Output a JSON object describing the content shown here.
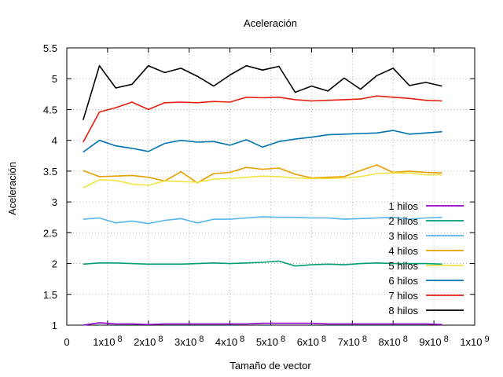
{
  "chart_data": {
    "type": "line",
    "title": "Aceleración",
    "xlabel": "Tamaño de vector",
    "ylabel": "Aceleración",
    "xlim": [
      0,
      1000000000
    ],
    "ylim": [
      1,
      5.5
    ],
    "grid": true,
    "legend_position": "right",
    "x_tick_labels": [
      {
        "value": 0,
        "label": "0"
      },
      {
        "value": 100000000,
        "label": "1x10",
        "exp": "8"
      },
      {
        "value": 200000000,
        "label": "2x10",
        "exp": "8"
      },
      {
        "value": 300000000,
        "label": "3x10",
        "exp": "8"
      },
      {
        "value": 400000000,
        "label": "4x10",
        "exp": "8"
      },
      {
        "value": 500000000,
        "label": "5x10",
        "exp": "8"
      },
      {
        "value": 600000000,
        "label": "6x10",
        "exp": "8"
      },
      {
        "value": 700000000,
        "label": "7x10",
        "exp": "8"
      },
      {
        "value": 800000000,
        "label": "8x10",
        "exp": "8"
      },
      {
        "value": 900000000,
        "label": "9x10",
        "exp": "8"
      },
      {
        "value": 1000000000,
        "label": "1x10",
        "exp": "9"
      }
    ],
    "y_ticks": [
      1,
      1.5,
      2,
      2.5,
      3,
      3.5,
      4,
      4.5,
      5,
      5.5
    ],
    "y_tick_labels": [
      "1",
      "1.5",
      "2",
      "2.5",
      "3",
      "3.5",
      "4",
      "4.5",
      "5",
      "5.5"
    ],
    "x": [
      40000000,
      80000000,
      120000000,
      160000000,
      200000000,
      240000000,
      280000000,
      320000000,
      360000000,
      400000000,
      440000000,
      480000000,
      520000000,
      560000000,
      600000000,
      640000000,
      680000000,
      720000000,
      760000000,
      800000000,
      840000000,
      880000000,
      920000000
    ],
    "series": [
      {
        "name": "1 hilos",
        "color": "#9400d3",
        "values": [
          1.0,
          1.04,
          1.02,
          1.02,
          1.01,
          1.02,
          1.02,
          1.02,
          1.02,
          1.02,
          1.02,
          1.03,
          1.03,
          1.03,
          1.03,
          1.02,
          1.02,
          1.02,
          1.02,
          1.02,
          1.02,
          1.02,
          1.01
        ]
      },
      {
        "name": "2 hilos",
        "color": "#009e73",
        "values": [
          1.99,
          2.01,
          2.01,
          2.0,
          1.99,
          1.99,
          1.99,
          2.0,
          2.01,
          2.0,
          2.01,
          2.02,
          2.04,
          1.96,
          1.98,
          1.99,
          1.98,
          2.0,
          2.01,
          2.0,
          2.0,
          2.0,
          1.99
        ]
      },
      {
        "name": "3 hilos",
        "color": "#56b4e9",
        "values": [
          2.72,
          2.74,
          2.66,
          2.69,
          2.65,
          2.7,
          2.73,
          2.66,
          2.72,
          2.72,
          2.74,
          2.76,
          2.75,
          2.75,
          2.74,
          2.74,
          2.72,
          2.73,
          2.74,
          2.75,
          2.72,
          2.74,
          2.75
        ]
      },
      {
        "name": "4 hilos",
        "color": "#e69f00",
        "values": [
          3.51,
          3.41,
          3.42,
          3.43,
          3.4,
          3.34,
          3.49,
          3.31,
          3.46,
          3.48,
          3.56,
          3.53,
          3.55,
          3.45,
          3.39,
          3.4,
          3.41,
          3.51,
          3.6,
          3.48,
          3.5,
          3.48,
          3.47
        ]
      },
      {
        "name": "5 hilos",
        "color": "#f0e442",
        "values": [
          3.23,
          3.36,
          3.35,
          3.29,
          3.27,
          3.34,
          3.33,
          3.32,
          3.37,
          3.38,
          3.4,
          3.42,
          3.41,
          3.39,
          3.38,
          3.38,
          3.39,
          3.41,
          3.46,
          3.47,
          3.47,
          3.44,
          3.44
        ]
      },
      {
        "name": "6 hilos",
        "color": "#0072b2",
        "values": [
          3.81,
          4.0,
          3.91,
          3.87,
          3.82,
          3.95,
          4.0,
          3.97,
          3.98,
          3.92,
          4.01,
          3.89,
          3.98,
          4.02,
          4.05,
          4.09,
          4.1,
          4.11,
          4.12,
          4.16,
          4.1,
          4.12,
          4.14
        ]
      },
      {
        "name": "7 hilos",
        "color": "#e51e10",
        "values": [
          3.97,
          4.46,
          4.53,
          4.62,
          4.5,
          4.61,
          4.62,
          4.61,
          4.63,
          4.62,
          4.7,
          4.69,
          4.7,
          4.66,
          4.64,
          4.65,
          4.66,
          4.67,
          4.72,
          4.7,
          4.68,
          4.65,
          4.64
        ]
      },
      {
        "name": "8 hilos",
        "color": "#000000",
        "values": [
          4.33,
          5.21,
          4.85,
          4.91,
          5.21,
          5.1,
          5.17,
          5.04,
          4.88,
          5.06,
          5.21,
          5.14,
          5.2,
          4.78,
          4.88,
          4.8,
          5.01,
          4.83,
          5.05,
          5.17,
          4.89,
          4.94,
          4.88
        ]
      }
    ]
  }
}
